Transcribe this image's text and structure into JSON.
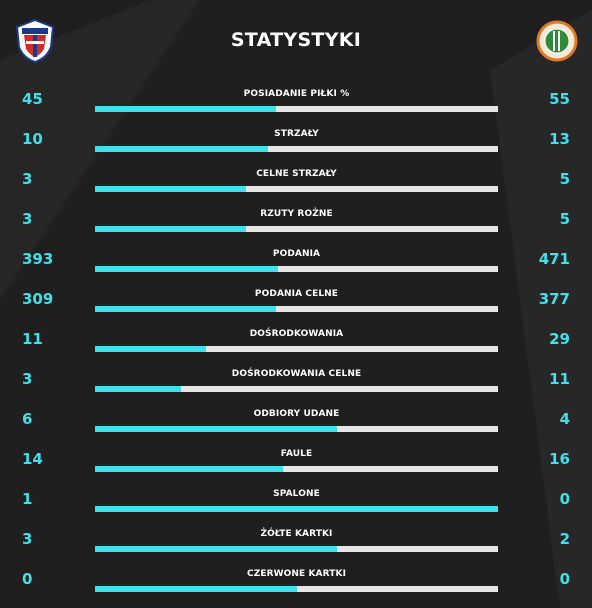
{
  "title": "STATYSTYKI",
  "colors": {
    "accent": "#3fe0ea",
    "bar_track": "#e6e6e6",
    "background": "#1f1f1f"
  },
  "stats": [
    {
      "label": "POSIADANIE PIŁKI %",
      "home": "45",
      "away": "55",
      "home_share": 0.45
    },
    {
      "label": "STRZAŁY",
      "home": "10",
      "away": "13",
      "home_share": 0.43
    },
    {
      "label": "CELNE STRZAŁY",
      "home": "3",
      "away": "5",
      "home_share": 0.375
    },
    {
      "label": "RZUTY ROŻNE",
      "home": "3",
      "away": "5",
      "home_share": 0.375
    },
    {
      "label": "PODANIA",
      "home": "393",
      "away": "471",
      "home_share": 0.455
    },
    {
      "label": "PODANIA CELNE",
      "home": "309",
      "away": "377",
      "home_share": 0.45
    },
    {
      "label": "DOŚRODKOWANIA",
      "home": "11",
      "away": "29",
      "home_share": 0.275
    },
    {
      "label": "DOŚRODKOWANIA CELNE",
      "home": "3",
      "away": "11",
      "home_share": 0.214
    },
    {
      "label": "ODBIORY UDANE",
      "home": "6",
      "away": "4",
      "home_share": 0.6
    },
    {
      "label": "FAULE",
      "home": "14",
      "away": "16",
      "home_share": 0.467
    },
    {
      "label": "SPALONE",
      "home": "1",
      "away": "0",
      "home_share": 1.0
    },
    {
      "label": "ŻÓŁTE KARTKI",
      "home": "3",
      "away": "2",
      "home_share": 0.6
    },
    {
      "label": "CZERWONE KARTKI",
      "home": "0",
      "away": "0",
      "home_share": 0.5
    }
  ]
}
